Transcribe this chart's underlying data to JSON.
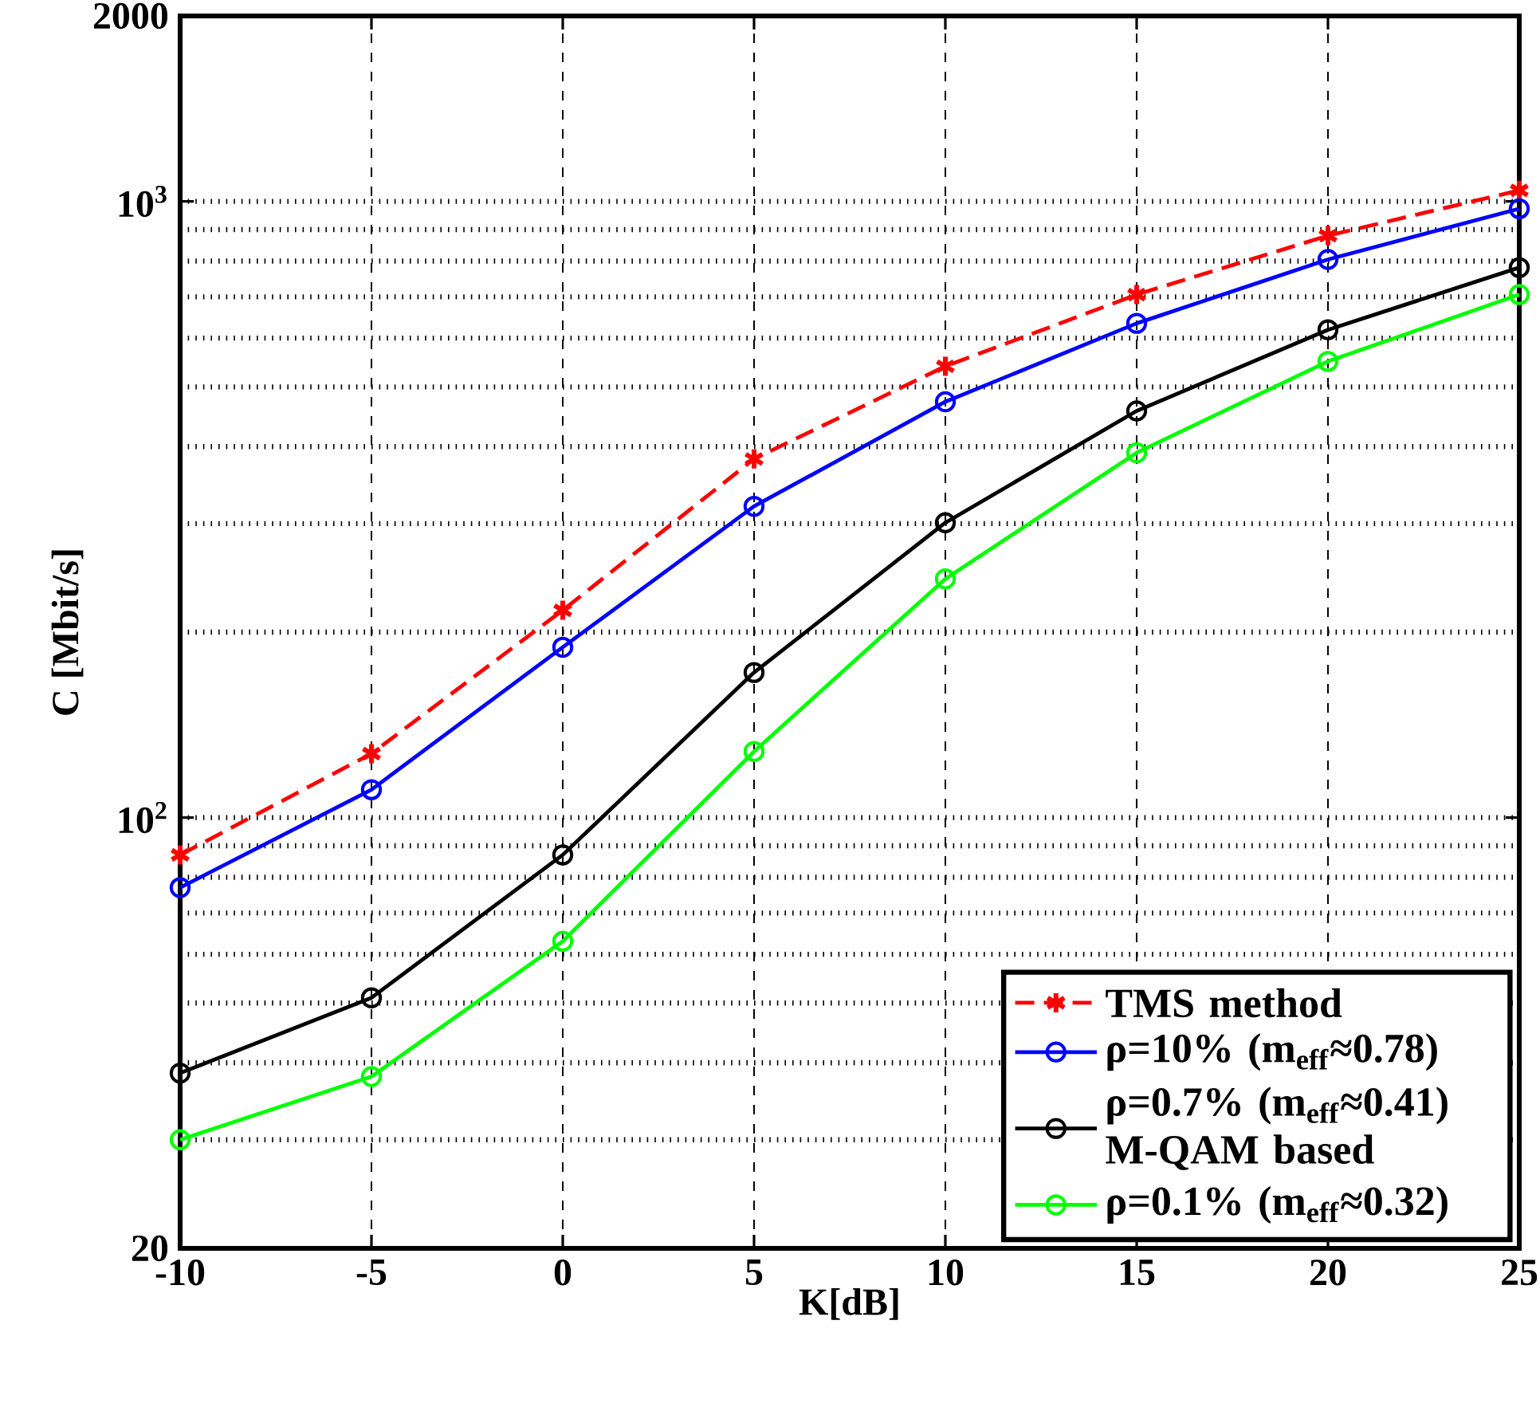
{
  "chart_data": {
    "type": "line",
    "xlabel": "K[dB]",
    "ylabel": "C [Mbit/s]",
    "x": [
      -10,
      -5,
      0,
      5,
      10,
      15,
      20,
      25
    ],
    "series": [
      {
        "name": "TMS method",
        "color": "#ff0000",
        "marker": "cross",
        "line_style": "dashed",
        "values": [
          87,
          127,
          217,
          382,
          540,
          706,
          880,
          1042
        ]
      },
      {
        "name": "ρ=10% (m$_{eff}$≈0.78)",
        "color": "#0000ff",
        "marker": "circle",
        "line_style": "solid",
        "values": [
          77,
          111,
          189,
          320,
          473,
          634,
          805,
          973
        ]
      },
      {
        "name": "ρ=0.7% (m$_{eff}$≈0.41) M-QAM based",
        "color": "#000000",
        "marker": "circle",
        "line_style": "solid",
        "values": [
          38.5,
          51,
          87,
          172,
          301,
          457,
          619,
          781
        ]
      },
      {
        "name": "ρ=0.1% (m$_{eff}$≈0.32)",
        "color": "#00ff00",
        "marker": "circle",
        "line_style": "solid",
        "values": [
          30,
          38,
          63,
          128,
          244,
          391,
          550,
          706
        ]
      }
    ],
    "xlim": [
      -10,
      25
    ],
    "xticks": [
      -10,
      -5,
      0,
      5,
      10,
      15,
      20,
      25
    ],
    "ylim": [
      20,
      2000
    ],
    "yticks": [
      20,
      {
        "value": 100,
        "label": "10$^{2}$"
      },
      {
        "value": 1000,
        "label": "10$^{3}$"
      },
      2000
    ],
    "log": "y",
    "grid": true,
    "legend": "bottom right"
  }
}
